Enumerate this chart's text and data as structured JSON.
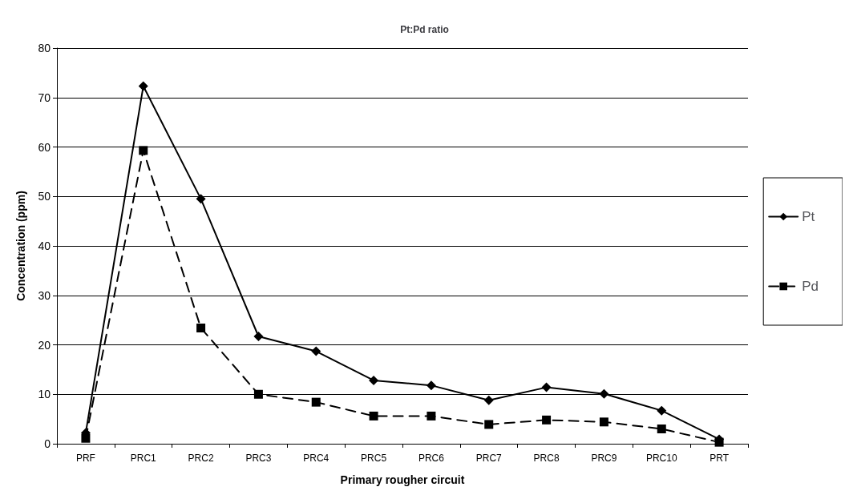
{
  "chart_data": {
    "type": "line",
    "title": "Pt:Pd ratio",
    "xlabel": "Primary rougher circuit",
    "ylabel": "Concentration (ppm)",
    "categories": [
      "PRF",
      "PRC1",
      "PRC2",
      "PRC3",
      "PRC4",
      "PRC5",
      "PRC6",
      "PRC7",
      "PRC8",
      "PRC9",
      "PRC10",
      "PRT"
    ],
    "series": [
      {
        "name": "Pt",
        "color": "#000000",
        "marker": "diamond",
        "line_style": "solid",
        "values": [
          2.2,
          72.3,
          49.5,
          21.7,
          18.7,
          12.8,
          11.8,
          8.8,
          11.4,
          10.1,
          6.7,
          0.9
        ]
      },
      {
        "name": "Pd",
        "color": "#000000",
        "marker": "square",
        "line_style": "dashed",
        "values": [
          1.1,
          59.3,
          23.4,
          10.0,
          8.4,
          5.6,
          5.6,
          3.9,
          4.8,
          4.4,
          3.0,
          0.3
        ]
      }
    ],
    "ylim": [
      0,
      80
    ],
    "yticks": [
      0,
      10,
      20,
      30,
      40,
      50,
      60,
      70,
      80
    ],
    "grid": "y",
    "legend": "right"
  }
}
